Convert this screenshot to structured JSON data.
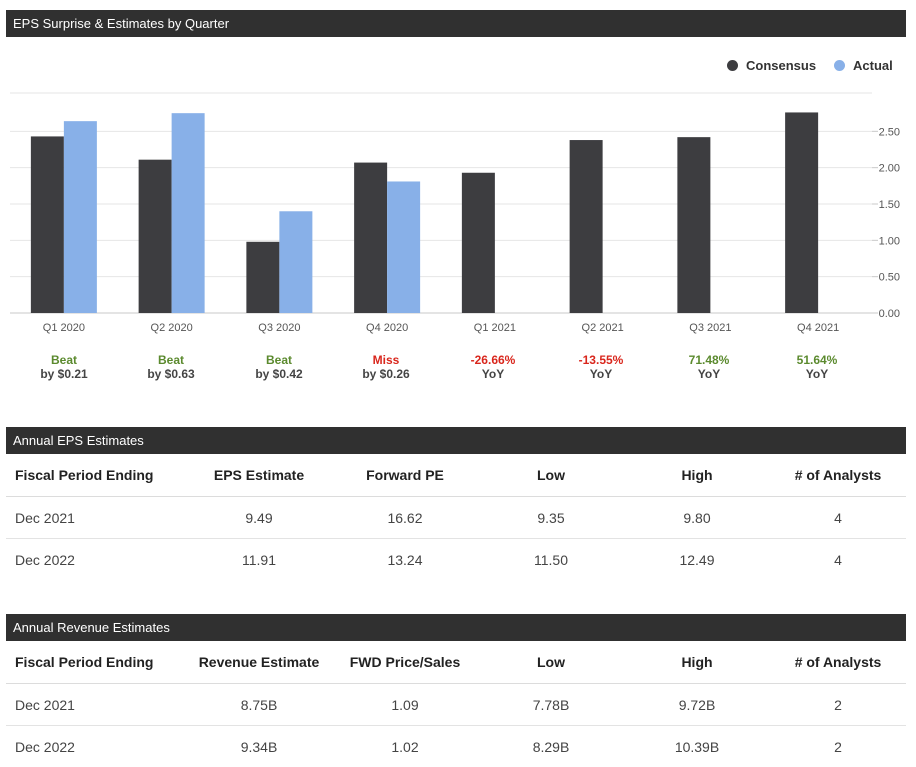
{
  "eps_section": {
    "title": "EPS Surprise & Estimates by Quarter"
  },
  "legend": [
    {
      "label": "Consensus",
      "color": "#3d3d40"
    },
    {
      "label": "Actual",
      "color": "#88b0e8"
    }
  ],
  "chart_data": {
    "type": "bar",
    "title": "EPS Surprise & Estimates by Quarter",
    "categories": [
      "Q1 2020",
      "Q2 2020",
      "Q3 2020",
      "Q4 2020",
      "Q1 2021",
      "Q2 2021",
      "Q3 2021",
      "Q4 2021"
    ],
    "series": [
      {
        "name": "Consensus",
        "values": [
          2.43,
          2.11,
          0.98,
          2.07,
          1.93,
          2.38,
          2.42,
          2.76
        ]
      },
      {
        "name": "Actual",
        "values": [
          2.64,
          2.75,
          1.4,
          1.81,
          null,
          null,
          null,
          null
        ]
      }
    ],
    "yticks": [
      "0.00",
      "0.50",
      "1.00",
      "1.50",
      "2.00",
      "2.50"
    ],
    "ylim": [
      0,
      3.0
    ],
    "grid": true,
    "legend_position": "top-right"
  },
  "surprises": [
    {
      "top": "Beat",
      "bottom": "by $0.21",
      "tone": "good"
    },
    {
      "top": "Beat",
      "bottom": "by $0.63",
      "tone": "good"
    },
    {
      "top": "Beat",
      "bottom": "by $0.42",
      "tone": "good"
    },
    {
      "top": "Miss",
      "bottom": "by $0.26",
      "tone": "bad"
    },
    {
      "top": "-26.66%",
      "bottom": "YoY",
      "tone": "bad"
    },
    {
      "top": "-13.55%",
      "bottom": "YoY",
      "tone": "bad"
    },
    {
      "top": "71.48%",
      "bottom": "YoY",
      "tone": "good"
    },
    {
      "top": "51.64%",
      "bottom": "YoY",
      "tone": "good"
    }
  ],
  "eps_table": {
    "title": "Annual EPS Estimates",
    "headers": [
      "Fiscal Period Ending",
      "EPS Estimate",
      "Forward PE",
      "Low",
      "High",
      "# of Analysts"
    ],
    "rows": [
      [
        "Dec 2021",
        "9.49",
        "16.62",
        "9.35",
        "9.80",
        "4"
      ],
      [
        "Dec 2022",
        "11.91",
        "13.24",
        "11.50",
        "12.49",
        "4"
      ]
    ]
  },
  "revenue_table": {
    "title": "Annual Revenue Estimates",
    "headers": [
      "Fiscal Period Ending",
      "Revenue Estimate",
      "FWD Price/Sales",
      "Low",
      "High",
      "# of Analysts"
    ],
    "rows": [
      [
        "Dec 2021",
        "8.75B",
        "1.09",
        "7.78B",
        "9.72B",
        "2"
      ],
      [
        "Dec 2022",
        "9.34B",
        "1.02",
        "8.29B",
        "10.39B",
        "2"
      ]
    ]
  }
}
